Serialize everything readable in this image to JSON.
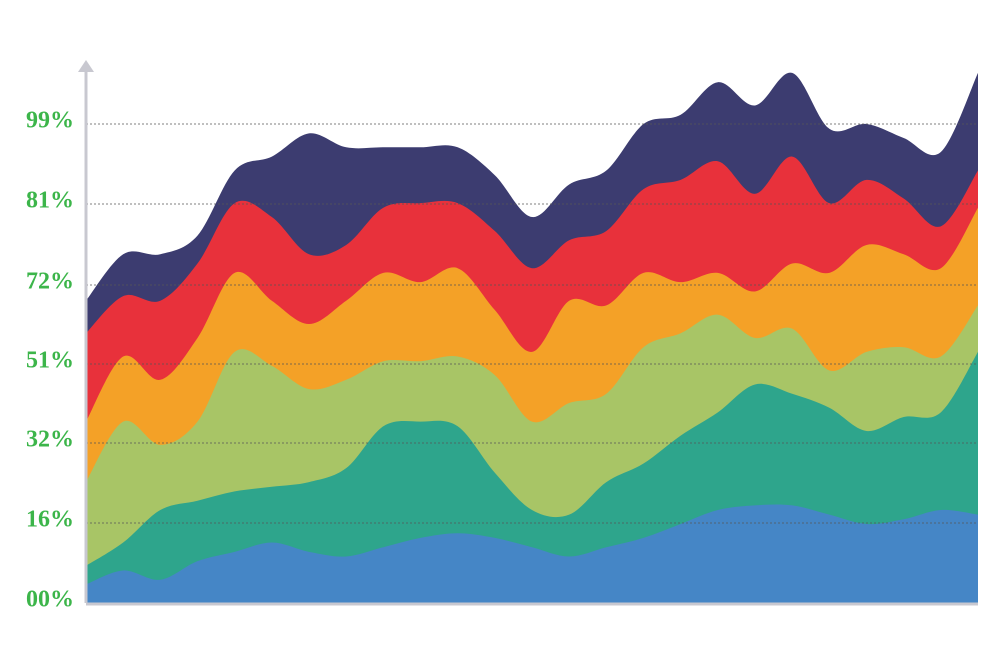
{
  "chart_data": {
    "type": "area",
    "stacked": true,
    "smooth": true,
    "title": "",
    "xlabel": "",
    "ylabel": "",
    "y_ticks": [
      "00%",
      "16%",
      "32%",
      "51%",
      "72%",
      "81%",
      "99%"
    ],
    "grid": "horizontal dotted",
    "legend": "none",
    "x": [
      0,
      1,
      2,
      3,
      4,
      5,
      6,
      7,
      8,
      9,
      10,
      11,
      12,
      13,
      14,
      15,
      16,
      17,
      18,
      19,
      20,
      21,
      22,
      23,
      24
    ],
    "series": [
      {
        "color": "#4586c6",
        "values": [
          4,
          7,
          5,
          9,
          11,
          13,
          11,
          10,
          12,
          14,
          15,
          14,
          12,
          10,
          12,
          14,
          17,
          20,
          21,
          21,
          19,
          17,
          18,
          20,
          19
        ]
      },
      {
        "color": "#2ea58c",
        "values": [
          4,
          6,
          15,
          13,
          13,
          12,
          15,
          19,
          26,
          25,
          23,
          14,
          8,
          9,
          14,
          16,
          19,
          21,
          26,
          24,
          23,
          20,
          22,
          21,
          35
        ]
      },
      {
        "color": "#a8c566",
        "values": [
          18,
          26,
          14,
          17,
          30,
          26,
          20,
          19,
          14,
          13,
          15,
          21,
          19,
          24,
          19,
          25,
          22,
          21,
          10,
          14,
          8,
          17,
          15,
          12,
          10
        ]
      },
      {
        "color": "#f4a127",
        "values": [
          13,
          14,
          14,
          18,
          17,
          14,
          14,
          17,
          19,
          17,
          19,
          14,
          15,
          22,
          19,
          16,
          11,
          9,
          10,
          14,
          21,
          23,
          20,
          19,
          21
        ]
      },
      {
        "color": "#e8313b",
        "values": [
          19,
          13,
          17,
          16,
          15,
          18,
          15,
          12,
          14,
          17,
          14,
          17,
          18,
          13,
          16,
          18,
          22,
          24,
          21,
          23,
          15,
          14,
          12,
          9,
          8
        ]
      },
      {
        "color": "#3c3c70",
        "values": [
          7,
          9,
          10,
          6,
          7,
          13,
          26,
          21,
          13,
          12,
          12,
          12,
          11,
          12,
          13,
          14,
          14,
          17,
          19,
          18,
          16,
          12,
          13,
          16,
          21
        ]
      }
    ]
  }
}
